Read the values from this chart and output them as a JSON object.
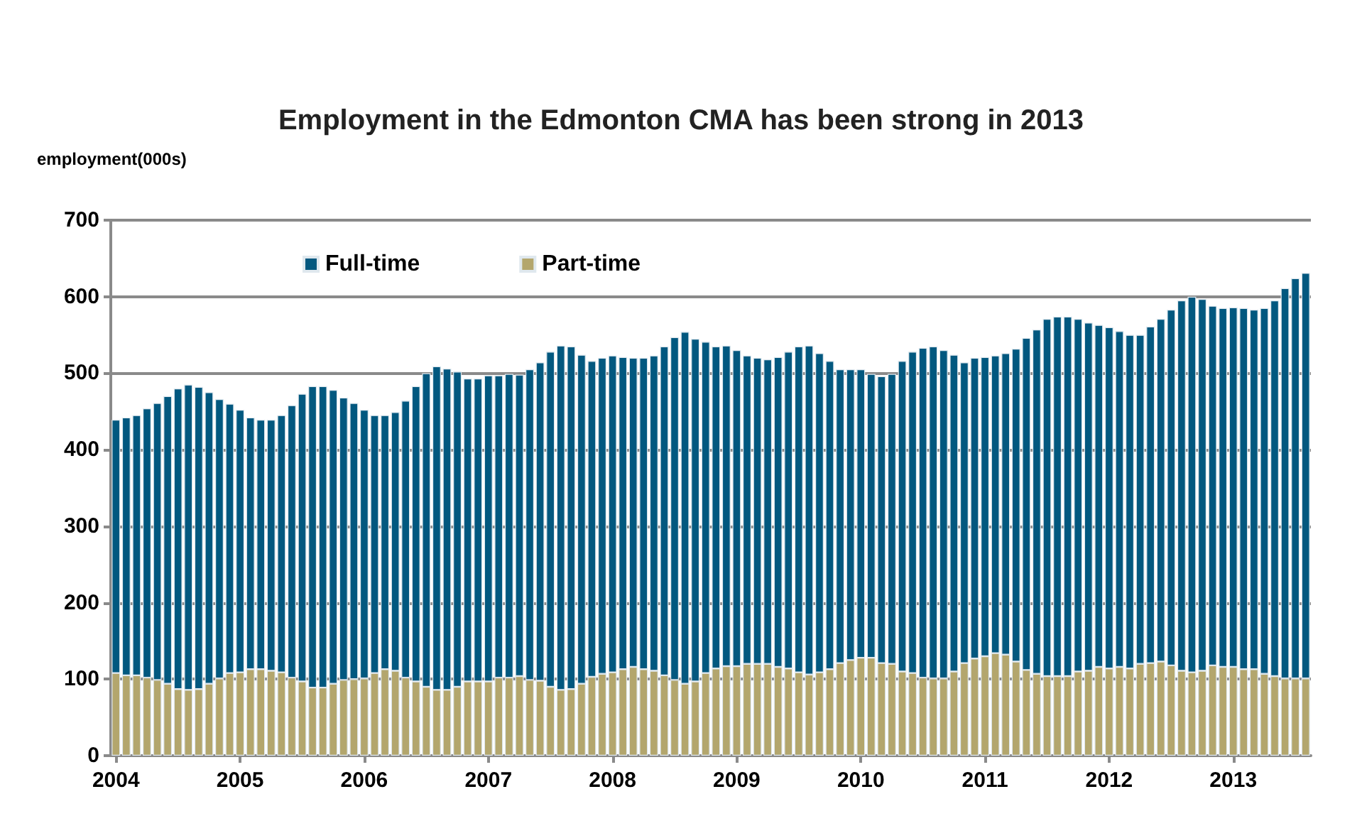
{
  "chart_data": {
    "type": "bar",
    "title": "Employment in the Edmonton CMA has been strong in 2013",
    "ylabel": "employment(000s)",
    "stacked": true,
    "categories": [
      "2004",
      null,
      null,
      null,
      null,
      null,
      null,
      null,
      null,
      null,
      null,
      null,
      "2005",
      null,
      null,
      null,
      null,
      null,
      null,
      null,
      null,
      null,
      null,
      null,
      "2006",
      null,
      null,
      null,
      null,
      null,
      null,
      null,
      null,
      null,
      null,
      null,
      "2007",
      null,
      null,
      null,
      null,
      null,
      null,
      null,
      null,
      null,
      null,
      null,
      "2008",
      null,
      null,
      null,
      null,
      null,
      null,
      null,
      null,
      null,
      null,
      null,
      "2009",
      null,
      null,
      null,
      null,
      null,
      null,
      null,
      null,
      null,
      null,
      null,
      "2010",
      null,
      null,
      null,
      null,
      null,
      null,
      null,
      null,
      null,
      null,
      null,
      "2011",
      null,
      null,
      null,
      null,
      null,
      null,
      null,
      null,
      null,
      null,
      null,
      "2012",
      null,
      null,
      null,
      null,
      null,
      null,
      null,
      null,
      null,
      null,
      null,
      "2013",
      null,
      null,
      null,
      null,
      null,
      null,
      null
    ],
    "series": [
      {
        "name": "Part-time",
        "color": "#b3a66d",
        "values": [
          108,
          105,
          105,
          102,
          99,
          94,
          87,
          86,
          87,
          94,
          101,
          108,
          109,
          113,
          113,
          111,
          109,
          102,
          97,
          89,
          89,
          94,
          99,
          100,
          101,
          108,
          113,
          111,
          102,
          97,
          90,
          86,
          86,
          90,
          97,
          97,
          97,
          102,
          102,
          104,
          99,
          98,
          90,
          86,
          87,
          94,
          103,
          107,
          109,
          113,
          116,
          113,
          111,
          105,
          99,
          94,
          97,
          108,
          114,
          117,
          117,
          120,
          120,
          120,
          116,
          114,
          109,
          106,
          109,
          113,
          121,
          125,
          128,
          128,
          121,
          120,
          110,
          108,
          102,
          101,
          101,
          110,
          121,
          127,
          130,
          134,
          132,
          123,
          112,
          107,
          104,
          104,
          104,
          110,
          111,
          116,
          114,
          116,
          114,
          120,
          121,
          123,
          118,
          111,
          109,
          111,
          118,
          116,
          116,
          113,
          113,
          107,
          104,
          101,
          101,
          101
        ]
      },
      {
        "name": "Full-time",
        "color": "#02587f",
        "values": [
          331,
          337,
          340,
          352,
          362,
          376,
          393,
          399,
          395,
          381,
          365,
          352,
          343,
          329,
          326,
          328,
          336,
          356,
          376,
          394,
          394,
          384,
          369,
          361,
          351,
          337,
          332,
          338,
          362,
          386,
          410,
          423,
          420,
          412,
          396,
          396,
          400,
          395,
          397,
          394,
          406,
          416,
          438,
          450,
          448,
          430,
          413,
          413,
          414,
          408,
          404,
          407,
          412,
          430,
          448,
          460,
          448,
          433,
          421,
          419,
          413,
          403,
          400,
          398,
          405,
          414,
          426,
          430,
          417,
          403,
          384,
          380,
          377,
          371,
          375,
          379,
          406,
          420,
          431,
          434,
          429,
          414,
          393,
          393,
          391,
          389,
          394,
          409,
          434,
          450,
          467,
          470,
          470,
          461,
          455,
          447,
          446,
          439,
          436,
          430,
          440,
          448,
          465,
          484,
          491,
          486,
          470,
          469,
          470,
          472,
          470,
          478,
          491,
          510,
          523,
          530
        ]
      }
    ],
    "ylim": [
      0,
      700
    ],
    "yticks": [
      0,
      100,
      200,
      300,
      400,
      500,
      600,
      700
    ],
    "grid": "y",
    "legend": "top left"
  }
}
